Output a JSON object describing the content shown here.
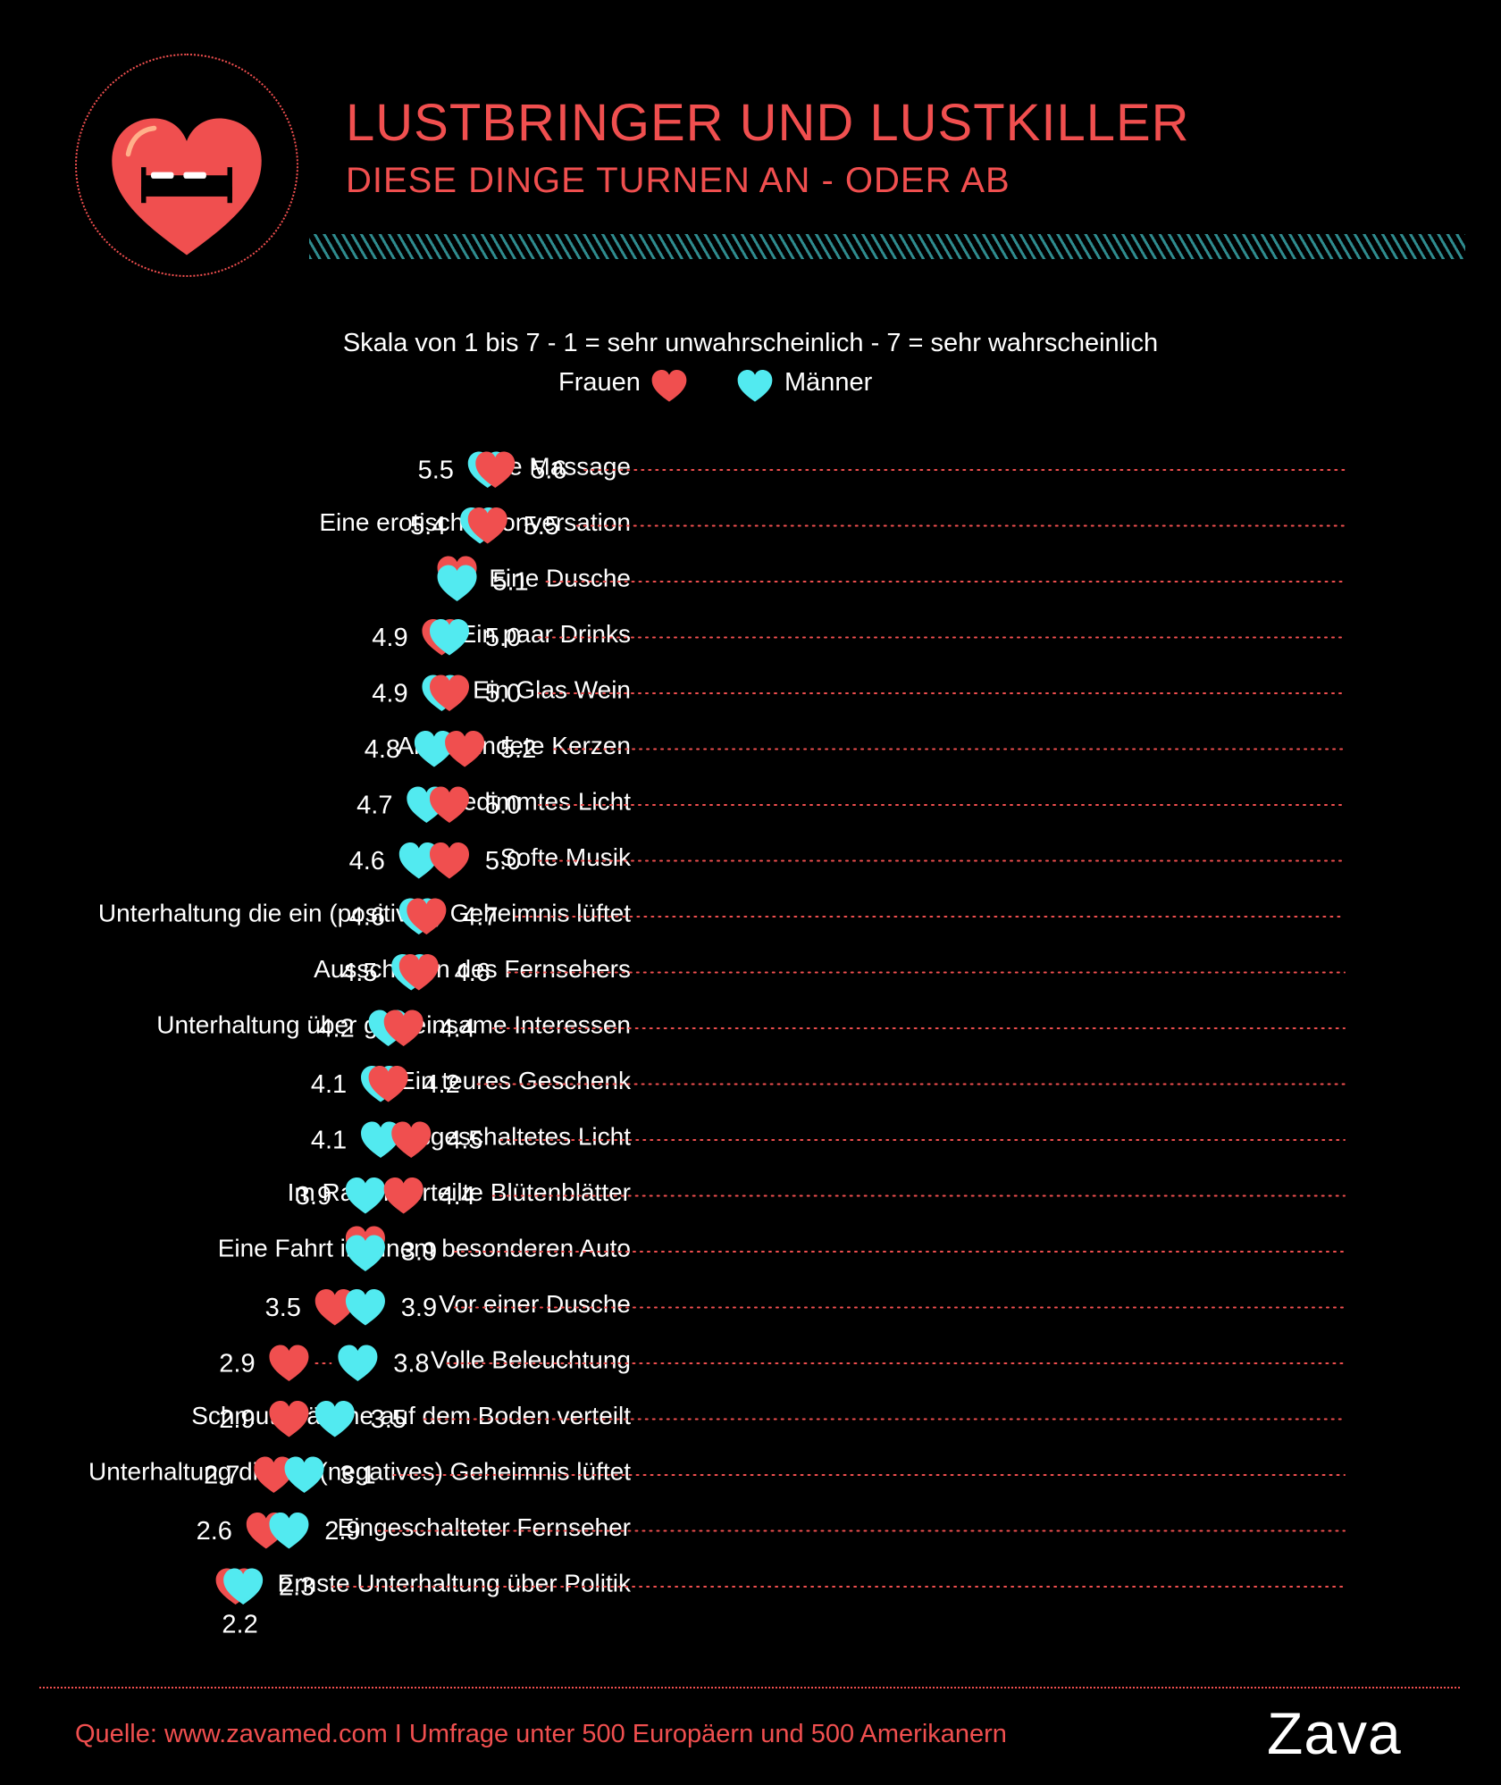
{
  "header": {
    "title": "LUSTBRINGER UND LUSTKILLER",
    "subtitle": "DIESE DINGE TURNEN AN - ODER AB"
  },
  "scale_note": "Skala von 1 bis 7 - 1 = sehr unwahrscheinlich  - 7 = sehr wahrscheinlich",
  "legend": {
    "women": "Frauen",
    "men": "Männer"
  },
  "colors": {
    "women": "#f04f4f",
    "men": "#52eaf0",
    "background": "#000000",
    "dots": "#f04f4f"
  },
  "chart_data": {
    "type": "dot",
    "title": "",
    "categories": [
      "Eine Massage",
      "Eine erotische Konversation",
      "Eine Dusche",
      "Ein paar Drinks",
      "Ein Glas Wein",
      "Angezündete Kerzen",
      "Gedimmtes Licht",
      "Softe Musik",
      "Unterhaltung die ein (positives) Geheimnis lüftet",
      "Ausschalten des Fernsehers",
      "Unterhaltung über gemeinsame Interessen",
      "Ein teures Geschenk",
      "Ausgeschaltetes Licht",
      "Im Raum verteilte Blütenblätter",
      "Eine Fahrt in einem besonderen Auto",
      "Vor einer Dusche",
      "Volle Beleuchtung",
      "Schmutzwäsche auf dem Boden verteilt",
      "Unterhaltung die ein (negatives) Geheimnis lüftet",
      "Eingeschalteter Fernseher",
      "Ernste Unterhaltung über Politik"
    ],
    "series": [
      {
        "name": "Frauen",
        "values": [
          5.6,
          5.5,
          5.1,
          4.9,
          5.0,
          5.2,
          5.0,
          5.0,
          4.7,
          4.6,
          4.4,
          4.2,
          4.5,
          4.4,
          3.9,
          3.5,
          2.9,
          2.9,
          2.7,
          2.6,
          2.2
        ]
      },
      {
        "name": "Männer",
        "values": [
          5.5,
          5.4,
          5.1,
          5.0,
          4.9,
          4.8,
          4.7,
          4.6,
          4.6,
          4.5,
          4.2,
          4.1,
          4.1,
          3.9,
          3.9,
          3.9,
          3.8,
          3.5,
          3.1,
          2.9,
          2.3
        ]
      }
    ],
    "labels": [
      [
        "5.5",
        "5.6"
      ],
      [
        "5.4",
        "5.5"
      ],
      [
        "5.1"
      ],
      [
        "4.9",
        "5.0"
      ],
      [
        "4.9",
        "5.0"
      ],
      [
        "4.8",
        "5.2"
      ],
      [
        "4.7",
        "5.0"
      ],
      [
        "4.6",
        "5.0"
      ],
      [
        "4.6",
        "4.7"
      ],
      [
        "4.5",
        "4.6"
      ],
      [
        "4.2",
        "4.4"
      ],
      [
        "4.1",
        "4.2"
      ],
      [
        "4.1",
        "4.5"
      ],
      [
        "3.9",
        "4.4"
      ],
      [
        "3.9"
      ],
      [
        "3.5",
        "3.9"
      ],
      [
        "2.9",
        "3.8"
      ],
      [
        "2.9",
        "3.5"
      ],
      [
        "2.7",
        "3.1"
      ],
      [
        "2.6",
        "2.9"
      ],
      [
        "2.3",
        "2.2"
      ]
    ],
    "xlim": [
      1,
      7
    ],
    "grid": false
  },
  "footer": {
    "source": "Quelle: www.zavamed.com I Umfrage unter 500 Europäern und 500 Amerikanern",
    "brand": "Zava"
  }
}
